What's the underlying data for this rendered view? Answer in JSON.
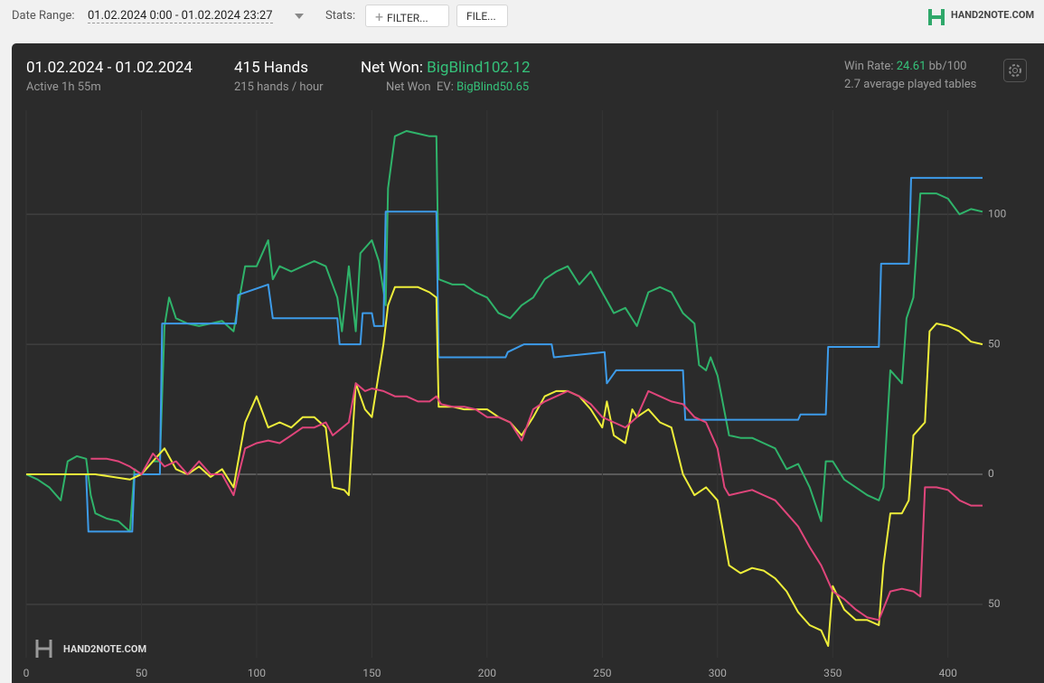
{
  "toolbar": {
    "date_range_label": "Date Range:",
    "date_range": "01.02.2024 0:00 - 01.02.2024 23:27",
    "stats_label": "Stats:",
    "filter_button": "FILTER...",
    "file_button": "FILE...",
    "logo": "HAND2NOTE.COM"
  },
  "header": {
    "period": "01.02.2024 - 01.02.2024",
    "active": "Active 1h 55m",
    "hands": "415 Hands",
    "hands_per_hour": "215 hands / hour",
    "net_won_label": "Net Won:",
    "net_won": "BigBlind102.12",
    "net_won_ev_label": "Net Won  EV:",
    "net_won_ev": "BigBlind50.65",
    "win_rate_label": "Win Rate:",
    "win_rate": "24.61",
    "win_rate_unit": "bb/100",
    "tables": "2.7 average played tables",
    "watermark": "HAND2NOTE.COM"
  },
  "chart_data": {
    "type": "line",
    "xlim": [
      0,
      415
    ],
    "xticks": [
      0,
      50,
      100,
      150,
      200,
      250,
      300,
      350,
      400
    ],
    "ylim": [
      -70.5,
      140
    ],
    "yticks": [
      {
        "value": -50,
        "label": "50"
      },
      0,
      50,
      100
    ],
    "grid": true,
    "series": [
      {
        "color": "#2fb36a",
        "x": [
          0,
          5,
          10,
          15,
          18,
          22,
          26,
          28,
          30,
          35,
          40,
          45,
          47,
          50,
          55,
          58,
          60,
          62,
          65,
          70,
          75,
          80,
          85,
          90,
          95,
          100,
          105,
          107,
          110,
          115,
          120,
          125,
          130,
          135,
          137,
          140,
          143,
          145,
          150,
          153,
          156,
          157,
          160,
          165,
          170,
          175,
          178,
          179,
          185,
          190,
          195,
          200,
          205,
          210,
          215,
          220,
          225,
          230,
          235,
          240,
          245,
          250,
          255,
          260,
          265,
          270,
          275,
          280,
          285,
          290,
          292,
          295,
          297,
          300,
          305,
          310,
          315,
          320,
          325,
          330,
          335,
          340,
          345,
          347,
          350,
          355,
          360,
          365,
          370,
          372,
          375,
          380,
          382,
          385,
          388,
          395,
          400,
          405,
          410,
          415
        ],
        "values": [
          0,
          -2,
          -5,
          -10,
          5,
          7,
          6,
          -8,
          -15,
          -17,
          -18,
          -22,
          2,
          0,
          5,
          5,
          57,
          68,
          60,
          58,
          57,
          58,
          59,
          55,
          80,
          80,
          90,
          75,
          80,
          78,
          80,
          82,
          80,
          68,
          55,
          80,
          55,
          85,
          90,
          82,
          65,
          110,
          130,
          132,
          131,
          130,
          130,
          75,
          73,
          73,
          70,
          68,
          62,
          60,
          65,
          68,
          75,
          78,
          80,
          73,
          78,
          70,
          62,
          64,
          57,
          70,
          72,
          70,
          62,
          58,
          42,
          40,
          45,
          38,
          15,
          14,
          14,
          12,
          10,
          2,
          4,
          -5,
          -18,
          5,
          5,
          -2,
          -5,
          -8,
          -10,
          -5,
          40,
          35,
          60,
          68,
          108,
          108,
          106,
          100,
          102,
          101
        ]
      },
      {
        "color": "#3d9be9",
        "x": [
          0,
          26,
          27,
          46,
          47,
          58,
          59,
          91,
          92,
          105,
          107,
          135,
          136,
          145,
          146,
          150,
          151,
          155,
          156,
          178,
          179,
          208,
          209,
          216,
          228,
          229,
          251,
          252,
          256,
          263,
          285,
          286,
          335,
          336,
          347,
          348,
          370,
          371,
          383,
          384,
          415
        ],
        "values": [
          0,
          0,
          -22,
          -22,
          0,
          0,
          58,
          58,
          69,
          73,
          60,
          60,
          50,
          50,
          62,
          62,
          57,
          57,
          101,
          101,
          45,
          45,
          47,
          50,
          50,
          45,
          47,
          35,
          40,
          40,
          40,
          21,
          21,
          23,
          23,
          49,
          49,
          81,
          81,
          114,
          114
        ]
      },
      {
        "color": "#eeee3a",
        "x": [
          0,
          25,
          30,
          45,
          50,
          55,
          60,
          65,
          70,
          75,
          80,
          85,
          90,
          95,
          100,
          105,
          110,
          115,
          120,
          125,
          130,
          133,
          138,
          140,
          143,
          147,
          150,
          155,
          157,
          160,
          170,
          175,
          178,
          179,
          185,
          190,
          195,
          200,
          205,
          210,
          215,
          220,
          225,
          230,
          235,
          240,
          245,
          250,
          252,
          255,
          260,
          263,
          265,
          270,
          275,
          280,
          285,
          290,
          295,
          300,
          305,
          310,
          315,
          320,
          325,
          330,
          335,
          340,
          345,
          348,
          350,
          355,
          360,
          365,
          370,
          372,
          375,
          380,
          383,
          385,
          388,
          390,
          392,
          395,
          400,
          405,
          410,
          415
        ],
        "values": [
          0,
          0,
          0,
          -2,
          0,
          5,
          10,
          2,
          0,
          3,
          -1,
          2,
          -5,
          20,
          30,
          18,
          20,
          18,
          22,
          22,
          18,
          -5,
          -6,
          -8,
          35,
          25,
          22,
          50,
          65,
          72,
          72,
          70,
          68,
          26,
          26,
          25,
          25,
          25,
          22,
          20,
          15,
          22,
          30,
          32,
          32,
          30,
          25,
          18,
          28,
          15,
          12,
          25,
          22,
          25,
          20,
          18,
          0,
          -8,
          -5,
          -10,
          -35,
          -38,
          -36,
          -37,
          -40,
          -45,
          -53,
          -58,
          -60,
          -66,
          -43,
          -52,
          -56,
          -56,
          -58,
          -35,
          -15,
          -15,
          -10,
          15,
          18,
          20,
          55,
          58,
          57,
          55,
          51,
          50
        ]
      },
      {
        "color": "#e0457b",
        "x": [
          28,
          35,
          40,
          45,
          50,
          55,
          60,
          65,
          70,
          75,
          80,
          85,
          90,
          95,
          100,
          105,
          110,
          115,
          120,
          125,
          130,
          133,
          140,
          143,
          147,
          150,
          155,
          160,
          165,
          170,
          175,
          178,
          180,
          185,
          190,
          195,
          200,
          205,
          210,
          215,
          220,
          225,
          230,
          235,
          240,
          245,
          250,
          255,
          260,
          265,
          270,
          275,
          280,
          285,
          290,
          295,
          300,
          303,
          305,
          310,
          315,
          320,
          325,
          330,
          335,
          340,
          345,
          350,
          355,
          360,
          365,
          370,
          375,
          380,
          385,
          388,
          390,
          395,
          400,
          405,
          410,
          415
        ],
        "values": [
          6,
          6,
          5,
          3,
          0,
          8,
          3,
          5,
          0,
          5,
          0,
          0,
          -8,
          10,
          12,
          13,
          12,
          15,
          18,
          18,
          20,
          15,
          20,
          35,
          32,
          33,
          32,
          30,
          30,
          28,
          28,
          30,
          27,
          26,
          26,
          25,
          22,
          22,
          20,
          13,
          25,
          28,
          30,
          32,
          30,
          27,
          22,
          20,
          18,
          22,
          32,
          30,
          28,
          27,
          22,
          20,
          10,
          -5,
          -8,
          -7,
          -6,
          -8,
          -10,
          -15,
          -20,
          -28,
          -35,
          -45,
          -48,
          -52,
          -55,
          -56,
          -45,
          -44,
          -45,
          -47,
          -5,
          -5,
          -6,
          -10,
          -12,
          -12
        ]
      }
    ]
  }
}
